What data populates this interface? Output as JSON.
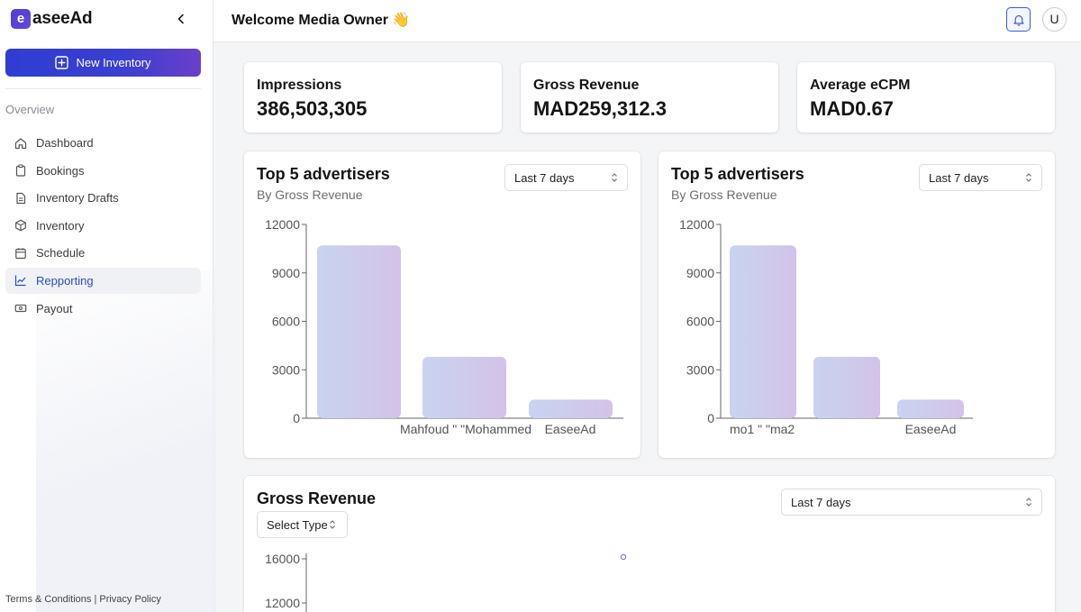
{
  "brand": {
    "mark": "e",
    "name": "aseeAd"
  },
  "sidebar": {
    "new_inventory": "New Inventory",
    "section": "Overview",
    "items": [
      {
        "label": "Dashboard",
        "icon": "home-icon"
      },
      {
        "label": "Bookings",
        "icon": "clipboard-icon"
      },
      {
        "label": "Inventory Drafts",
        "icon": "file-icon"
      },
      {
        "label": "Inventory",
        "icon": "box-icon"
      },
      {
        "label": "Schedule",
        "icon": "calendar-icon"
      },
      {
        "label": "Repporting",
        "icon": "chart-line-icon",
        "active": true
      },
      {
        "label": "Payout",
        "icon": "banknote-icon"
      }
    ],
    "footer": {
      "terms": "Terms & Conditions",
      "divider": "|",
      "privacy": "Privacy Policy"
    }
  },
  "header": {
    "welcome": "Welcome Media Owner 👋",
    "avatar": "U"
  },
  "stats": [
    {
      "label": "Impressions",
      "value": "386,503,305"
    },
    {
      "label": "Gross Revenue",
      "value": "MAD259,312.3"
    },
    {
      "label": "Average eCPM",
      "value": "MAD0.67"
    }
  ],
  "charts": {
    "left": {
      "title": "Top 5 advertisers",
      "subtitle": "By Gross Revenue",
      "range": "Last 7 days"
    },
    "right": {
      "title": "Top 5 advertisers",
      "subtitle": "By Gross Revenue",
      "range": "Last 7 days"
    },
    "bottom": {
      "title": "Gross Revenue",
      "type_select": "Select Type",
      "range": "Last 7 days"
    }
  },
  "colors": {
    "accent": "#2e3ed1",
    "bar_start": "#c9d3f1",
    "bar_end": "#d3c3e8"
  },
  "chart_data": [
    {
      "type": "bar",
      "categories": [
        "Mahfoud \" \"Mohammed",
        "",
        "EaseeAd"
      ],
      "tick_labels": [
        "",
        "Mahfoud \" \"Mohammed",
        "EaseeAd"
      ],
      "values": [
        10700,
        3800,
        1150
      ],
      "ylim": [
        0,
        12000
      ],
      "yticks": [
        0,
        3000,
        6000,
        9000,
        12000
      ]
    },
    {
      "type": "bar",
      "categories": [
        "mo1 \" \"ma2",
        "",
        "EaseeAd"
      ],
      "tick_labels": [
        "mo1 \" \"ma2",
        "",
        "EaseeAd"
      ],
      "values": [
        10700,
        3800,
        1150
      ],
      "ylim": [
        0,
        12000
      ],
      "yticks": [
        0,
        3000,
        6000,
        9000,
        12000
      ]
    },
    {
      "type": "line",
      "yticks": [
        12000,
        16000
      ],
      "ylim": [
        12000,
        16000
      ],
      "points": [
        16000
      ]
    }
  ]
}
